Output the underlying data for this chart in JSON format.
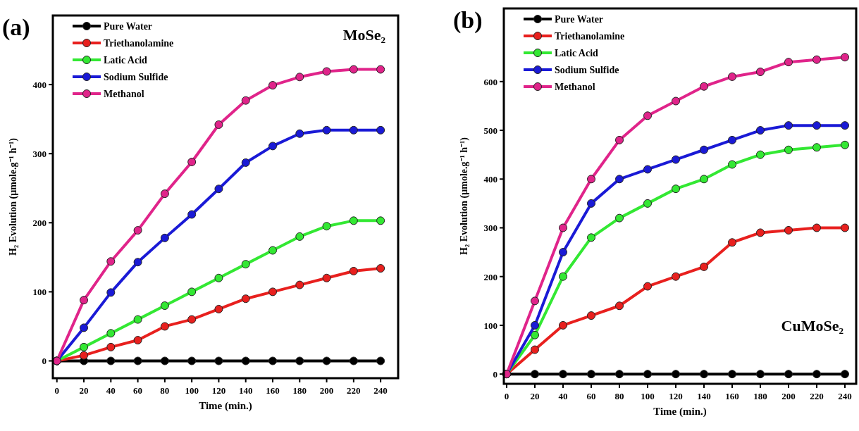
{
  "chart_data": [
    {
      "type": "line",
      "title": "(a)",
      "xlabel": "Time (min.)",
      "ylabel": "H₂ Evolution (µmole.g⁻¹ h⁻¹)",
      "annotations": [
        "MoSe₂"
      ],
      "x": [
        0,
        20,
        40,
        60,
        80,
        100,
        120,
        140,
        160,
        180,
        200,
        220,
        240
      ],
      "xlim": [
        -3,
        253
      ],
      "ylim": [
        -25,
        500
      ],
      "xticks": [
        0,
        20,
        40,
        60,
        80,
        100,
        120,
        140,
        160,
        180,
        200,
        220,
        240
      ],
      "yticks": [
        0,
        100,
        200,
        300,
        400
      ],
      "legend": "top left",
      "marker": "circle",
      "line_style": "solid",
      "grid": false,
      "series": [
        {
          "name": "Pure Water",
          "color": "#000000",
          "values": [
            0,
            0,
            0,
            0,
            0,
            0,
            0,
            0,
            0,
            0,
            0,
            0,
            0
          ]
        },
        {
          "name": "Triethanolamine",
          "color": "#e8201e",
          "values": [
            0,
            8,
            20,
            30,
            50,
            60,
            75,
            90,
            100,
            110,
            120,
            130,
            134
          ]
        },
        {
          "name": "Latic Acid",
          "color": "#33e833",
          "values": [
            0,
            20,
            40,
            60,
            80,
            100,
            120,
            140,
            160,
            180,
            195,
            203,
            203
          ]
        },
        {
          "name": "Sodium Sulfide",
          "color": "#1a1ad6",
          "values": [
            0,
            48,
            99,
            143,
            178,
            212,
            249,
            287,
            311,
            329,
            334,
            334,
            334
          ]
        },
        {
          "name": "Methanol",
          "color": "#e0248a",
          "values": [
            0,
            88,
            144,
            189,
            242,
            288,
            342,
            377,
            399,
            411,
            419,
            422,
            422
          ]
        }
      ]
    },
    {
      "type": "line",
      "title": "(b)",
      "xlabel": "Time (min.)",
      "ylabel": "H₂ Evolution (µmole.g⁻¹ h⁻¹)",
      "annotations": [
        "CuMoSe₂"
      ],
      "x": [
        0,
        20,
        40,
        60,
        80,
        100,
        120,
        140,
        160,
        180,
        200,
        220,
        240
      ],
      "xlim": [
        -2,
        248
      ],
      "ylim": [
        -20,
        750
      ],
      "xticks": [
        0,
        20,
        40,
        60,
        80,
        100,
        120,
        140,
        160,
        180,
        200,
        220,
        240
      ],
      "yticks": [
        0,
        100,
        200,
        300,
        400,
        500,
        600
      ],
      "legend": "top left",
      "marker": "circle",
      "line_style": "solid",
      "grid": false,
      "series": [
        {
          "name": "Pure Water",
          "color": "#000000",
          "values": [
            0,
            0,
            0,
            0,
            0,
            0,
            0,
            0,
            0,
            0,
            0,
            0,
            0
          ]
        },
        {
          "name": "Triethanolamine",
          "color": "#e8201e",
          "values": [
            0,
            50,
            100,
            120,
            140,
            180,
            200,
            220,
            270,
            290,
            295,
            300,
            300
          ]
        },
        {
          "name": "Latic Acid",
          "color": "#33e833",
          "values": [
            0,
            80,
            200,
            280,
            320,
            350,
            380,
            400,
            430,
            450,
            460,
            465,
            470
          ]
        },
        {
          "name": "Sodium Sulfide",
          "color": "#1a1ad6",
          "values": [
            0,
            100,
            250,
            350,
            400,
            420,
            440,
            460,
            480,
            500,
            510,
            510,
            510
          ]
        },
        {
          "name": "Methanol",
          "color": "#e0248a",
          "values": [
            0,
            150,
            300,
            400,
            480,
            530,
            560,
            590,
            610,
            620,
            640,
            645,
            650
          ]
        }
      ]
    }
  ]
}
